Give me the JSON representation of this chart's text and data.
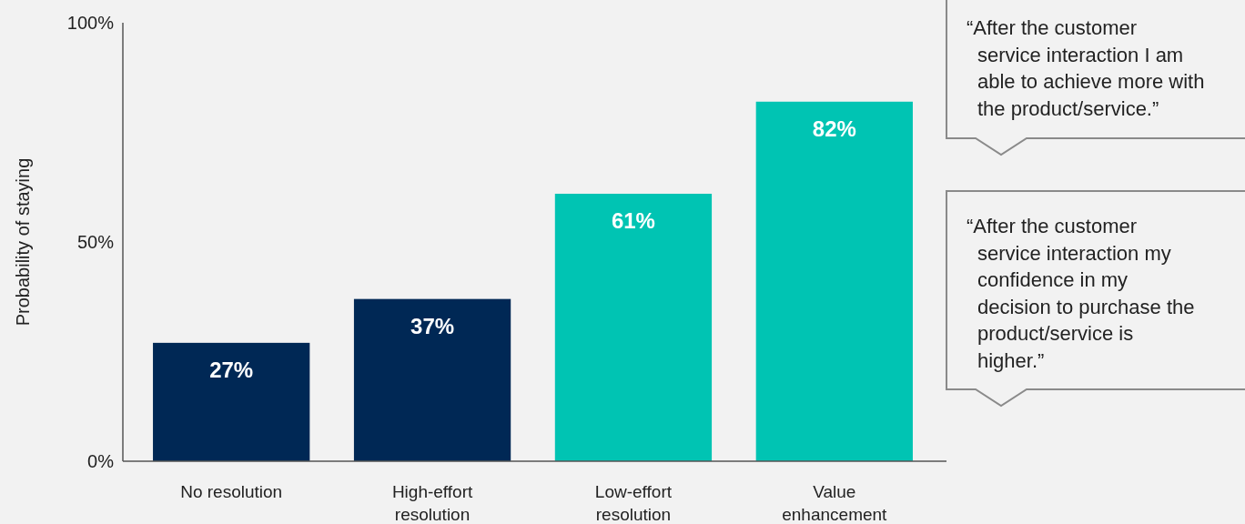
{
  "chart_data": {
    "type": "bar",
    "ylabel": "Probability of staying",
    "categories": [
      "No resolution",
      "High-effort resolution",
      "Low-effort resolution",
      "Value enhancement"
    ],
    "values": [
      27,
      37,
      61,
      82
    ],
    "colors": [
      "#002855",
      "#002855",
      "#00c4b3",
      "#00c4b3"
    ],
    "ylim": [
      0,
      100
    ],
    "yticks": [
      {
        "value": 0,
        "label": "0%"
      },
      {
        "value": 50,
        "label": "50%"
      },
      {
        "value": 100,
        "label": "100%"
      }
    ],
    "data_labels": true,
    "value_labels": [
      "27%",
      "37%",
      "61%",
      "82%"
    ],
    "annotations": [
      "“After the customer service interaction I am able to achieve more with the product/service.”",
      "“After the customer service interaction my confidence in my decision to purchase the product/service is higher.”"
    ]
  }
}
